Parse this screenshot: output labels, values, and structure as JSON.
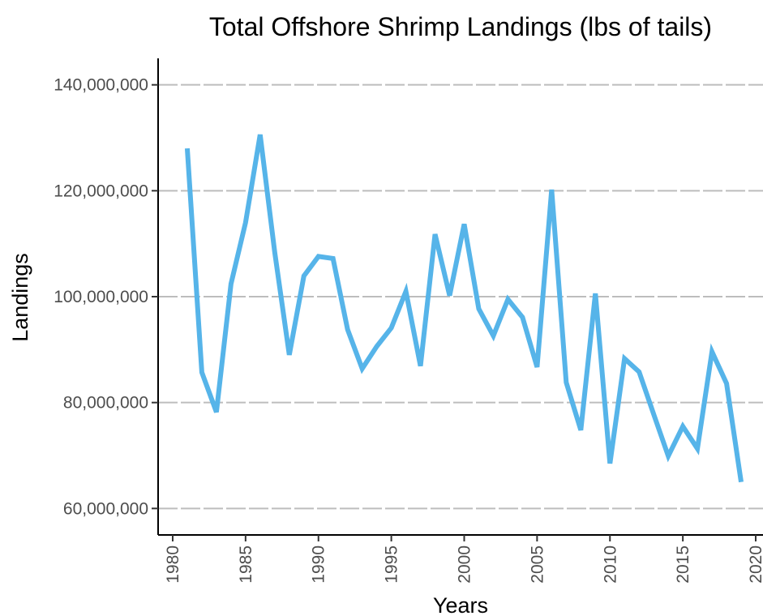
{
  "chart_data": {
    "type": "line",
    "title": "Total Offshore Shrimp Landings (lbs of tails)",
    "xlabel": "Years",
    "ylabel": "Landings",
    "xlim": [
      1979,
      2020.5
    ],
    "ylim": [
      55000000,
      145000000
    ],
    "x_ticks": [
      1980,
      1985,
      1990,
      1995,
      2000,
      2005,
      2010,
      2015,
      2020
    ],
    "x_tick_labels": [
      "1980",
      "1985",
      "1990",
      "1995",
      "2000",
      "2005",
      "2010",
      "2015",
      "2020"
    ],
    "y_ticks": [
      60000000,
      80000000,
      100000000,
      120000000,
      140000000
    ],
    "y_tick_labels": [
      "60,000,000",
      "80,000,000",
      "100,000,000",
      "120,000,000",
      "140,000,000"
    ],
    "grid": "horizontal dashed",
    "series": [
      {
        "color": "#56b4e9",
        "x": [
          1981,
          1982,
          1983,
          1984,
          1985,
          1986,
          1987,
          1988,
          1989,
          1990,
          1991,
          1992,
          1993,
          1994,
          1995,
          1996,
          1997,
          1998,
          1999,
          2000,
          2001,
          2002,
          2003,
          2004,
          2005,
          2006,
          2007,
          2008,
          2009,
          2010,
          2011,
          2012,
          2013,
          2014,
          2015,
          2016,
          2017,
          2018,
          2019
        ],
        "values": [
          128000000,
          85700000,
          78200000,
          102400000,
          114000000,
          130600000,
          108400000,
          89000000,
          103900000,
          107600000,
          107200000,
          93800000,
          86400000,
          90600000,
          94100000,
          101000000,
          86900000,
          111800000,
          100200000,
          113700000,
          97700000,
          92600000,
          99500000,
          96100000,
          86700000,
          120200000,
          83800000,
          74800000,
          100600000,
          68500000,
          88300000,
          85800000,
          77800000,
          69900000,
          75500000,
          71300000,
          89600000,
          83600000,
          65000000
        ]
      }
    ]
  }
}
